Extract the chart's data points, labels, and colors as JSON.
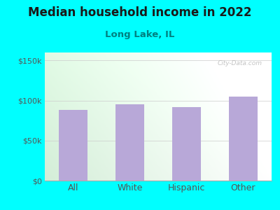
{
  "title": "Median household income in 2022",
  "subtitle": "Long Lake, IL",
  "categories": [
    "All",
    "White",
    "Hispanic",
    "Other"
  ],
  "values": [
    88000,
    95000,
    92000,
    105000
  ],
  "bar_color": "#b8a8d8",
  "yticks": [
    0,
    50000,
    100000,
    150000
  ],
  "ytick_labels": [
    "$0",
    "$50k",
    "$100k",
    "$150k"
  ],
  "ylim": [
    0,
    160000
  ],
  "bg_outer": "#00ffff",
  "bg_plot_grad_left": "#d4eed8",
  "bg_plot_grad_right": "#f8fff8",
  "title_color": "#1a1a1a",
  "subtitle_color": "#008080",
  "tick_color": "#555555",
  "watermark": "City-Data.com",
  "title_fontsize": 12,
  "subtitle_fontsize": 9.5,
  "tick_fontsize": 8,
  "xlabel_fontsize": 9
}
